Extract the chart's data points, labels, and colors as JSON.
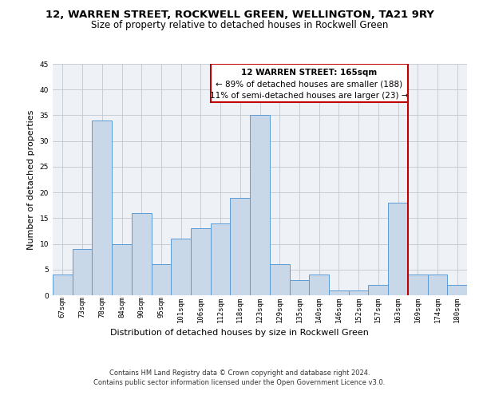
{
  "title": "12, WARREN STREET, ROCKWELL GREEN, WELLINGTON, TA21 9RY",
  "subtitle": "Size of property relative to detached houses in Rockwell Green",
  "xlabel": "Distribution of detached houses by size in Rockwell Green",
  "ylabel": "Number of detached properties",
  "categories": [
    "67sqm",
    "73sqm",
    "78sqm",
    "84sqm",
    "90sqm",
    "95sqm",
    "101sqm",
    "106sqm",
    "112sqm",
    "118sqm",
    "123sqm",
    "129sqm",
    "135sqm",
    "140sqm",
    "146sqm",
    "152sqm",
    "157sqm",
    "163sqm",
    "169sqm",
    "174sqm",
    "180sqm"
  ],
  "values": [
    4,
    9,
    34,
    10,
    16,
    6,
    11,
    13,
    14,
    19,
    35,
    6,
    3,
    4,
    1,
    1,
    2,
    18,
    4,
    4,
    2
  ],
  "bar_color": "#c8d8e8",
  "bar_edge_color": "#5b9bd5",
  "highlight_index": 17,
  "highlight_line_color": "#c00000",
  "ylim": [
    0,
    45
  ],
  "yticks": [
    0,
    5,
    10,
    15,
    20,
    25,
    30,
    35,
    40,
    45
  ],
  "annotation_text_line1": "12 WARREN STREET: 165sqm",
  "annotation_text_line2": "← 89% of detached houses are smaller (188)",
  "annotation_text_line3": "11% of semi-detached houses are larger (23) →",
  "annotation_box_color": "#c00000",
  "background_color": "#eef2f7",
  "grid_color": "#c0c8d0",
  "footer": "Contains HM Land Registry data © Crown copyright and database right 2024.\nContains public sector information licensed under the Open Government Licence v3.0.",
  "title_fontsize": 9.5,
  "subtitle_fontsize": 8.5,
  "ylabel_fontsize": 8,
  "xlabel_fontsize": 8,
  "tick_fontsize": 6.5,
  "annotation_fontsize": 7.5,
  "footer_fontsize": 6
}
